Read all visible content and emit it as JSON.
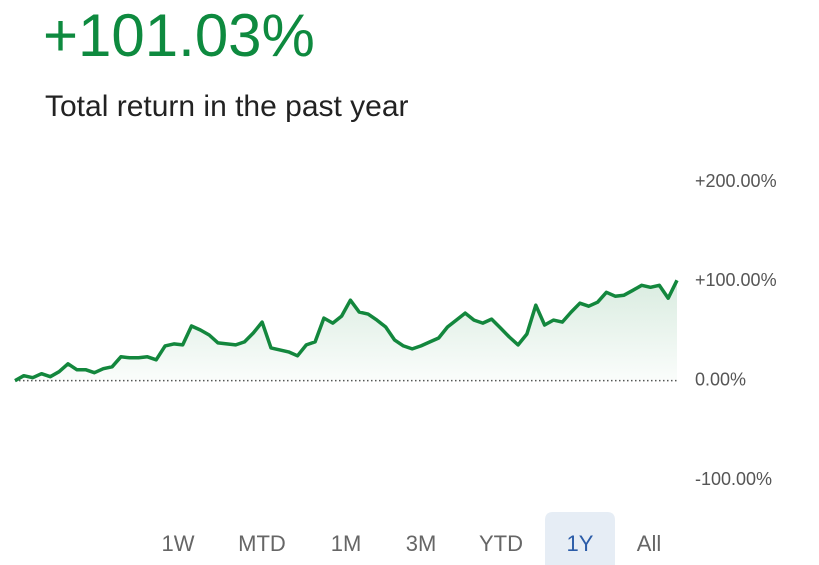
{
  "header": {
    "value_text": "+101.03%",
    "subtitle": "Total return in the past year"
  },
  "chart_data": {
    "type": "line",
    "series": [
      {
        "color": "#13873d",
        "values": [
          0,
          5,
          3,
          7,
          4,
          9,
          17,
          11,
          11,
          8,
          12,
          14,
          24,
          23,
          23,
          24,
          21,
          35,
          37,
          36,
          55,
          51,
          46,
          38,
          37,
          36,
          39,
          48,
          59,
          33,
          31,
          29,
          25,
          36,
          39,
          63,
          58,
          65,
          81,
          69,
          67,
          61,
          54,
          41,
          35,
          32,
          35,
          39,
          43,
          54,
          61,
          68,
          61,
          58,
          62,
          53,
          44,
          36,
          47,
          76,
          56,
          61,
          59,
          69,
          78,
          75,
          79,
          89,
          85,
          86,
          91,
          96,
          94,
          96,
          83,
          101.03
        ]
      }
    ],
    "ylim": [
      -100,
      200
    ],
    "yticks": [
      {
        "value": 200,
        "label": "+200.00%"
      },
      {
        "value": 100,
        "label": "+100.00%"
      },
      {
        "value": 0,
        "label": "0.00%"
      },
      {
        "value": -100,
        "label": "-100.00%"
      }
    ]
  },
  "range_buttons": {
    "options": [
      "1W",
      "MTD",
      "1M",
      "3M",
      "YTD",
      "1Y",
      "All"
    ],
    "selected": 5
  }
}
